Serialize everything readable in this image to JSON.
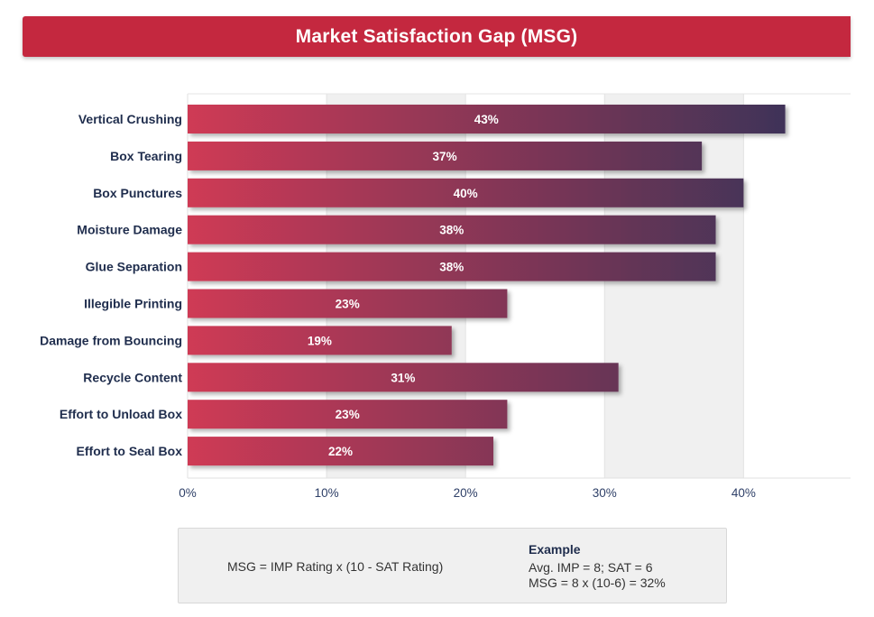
{
  "colors": {
    "banner": "#c4283f",
    "bar_start": "#cf3a55",
    "bar_end": "#3f3358",
    "band": "#f0f0f0"
  },
  "chart_data": {
    "type": "bar",
    "orientation": "horizontal",
    "title": "Market Satisfaction Gap (MSG)",
    "categories": [
      "Vertical Crushing",
      "Box Tearing",
      "Box Punctures",
      "Moisture Damage",
      "Glue Separation",
      "Illegible Printing",
      "Damage from Bouncing",
      "Recycle Content",
      "Effort to Unload Box",
      "Effort to Seal Box"
    ],
    "values": [
      43,
      37,
      40,
      38,
      38,
      23,
      19,
      31,
      23,
      22
    ],
    "value_labels": [
      "43%",
      "37%",
      "40%",
      "38%",
      "38%",
      "23%",
      "19%",
      "31%",
      "23%",
      "22%"
    ],
    "x_ticks": [
      0,
      10,
      20,
      30,
      40
    ],
    "x_tick_labels": [
      "0%",
      "10%",
      "20%",
      "30%",
      "40%"
    ],
    "xlim": [
      0,
      47.7
    ],
    "grid": true
  },
  "formula": {
    "text": "MSG = IMP Rating x (10 - SAT Rating)",
    "example_title": "Example",
    "example_line1": "Avg. IMP = 8; SAT = 6",
    "example_line2": "MSG = 8 x (10-6) = 32%"
  }
}
